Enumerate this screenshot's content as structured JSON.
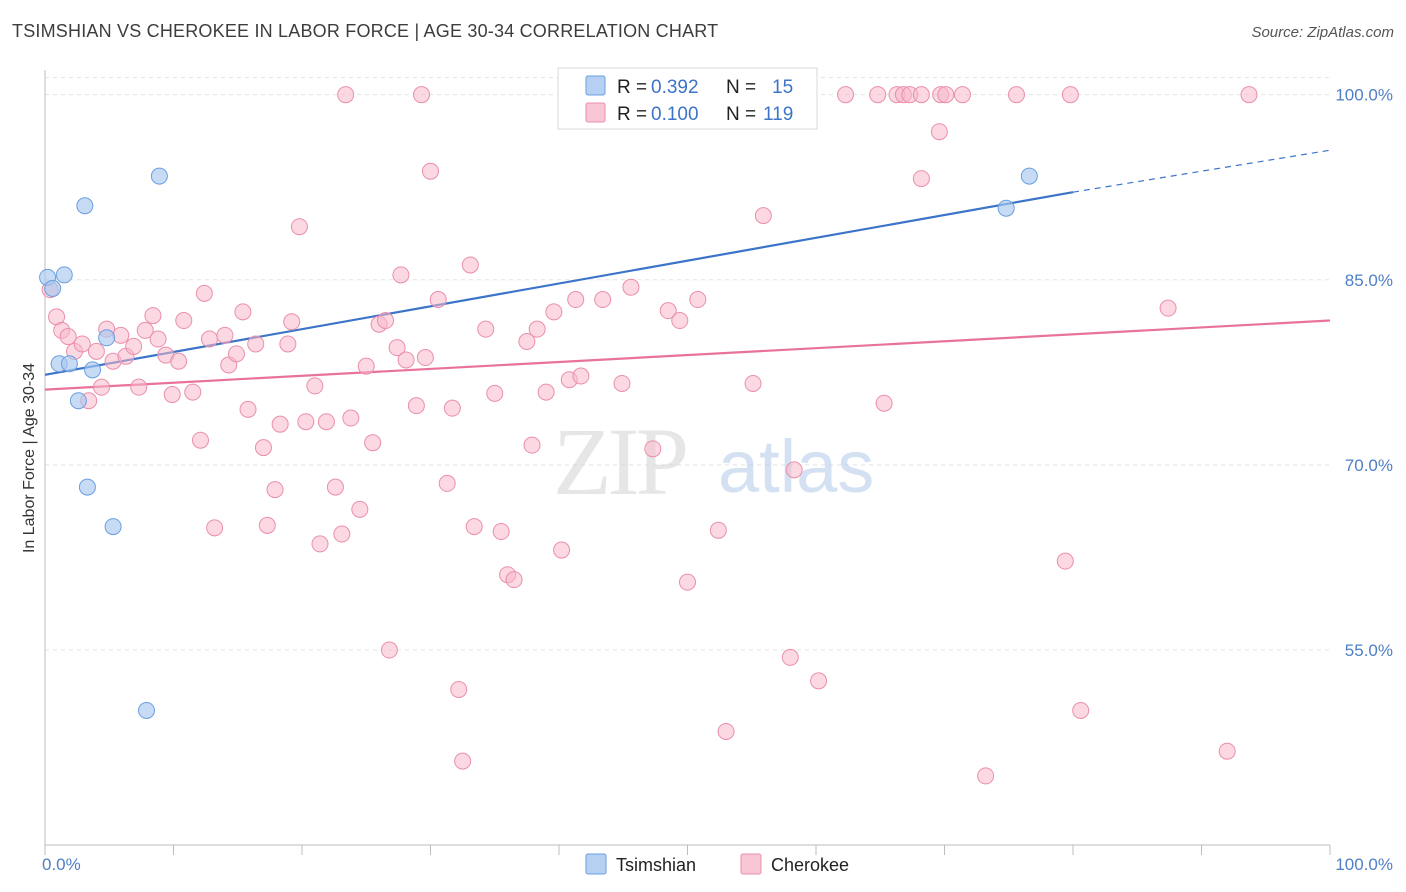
{
  "title": "TSIMSHIAN VS CHEROKEE IN LABOR FORCE | AGE 30-34 CORRELATION CHART",
  "source": "Source: ZipAtlas.com",
  "watermark": {
    "zip": "ZIP",
    "atlas": "atlas"
  },
  "legend": {
    "r_label": "R =",
    "n_label": "N =",
    "items": [
      {
        "name": "Tsimshian",
        "r": "0.392",
        "n": "15",
        "fill": "#a9c8f0",
        "stroke": "#6a9fe0"
      },
      {
        "name": "Cherokee",
        "r": "0.100",
        "n": "119",
        "fill": "#f7b8cb",
        "stroke": "#ea8fab"
      }
    ]
  },
  "chart_data": {
    "type": "scatter",
    "title": "TSIMSHIAN VS CHEROKEE IN LABOR FORCE | AGE 30-34 CORRELATION CHART",
    "xlabel": "",
    "ylabel": "In Labor Force | Age 30-34",
    "xlim": [
      0,
      100
    ],
    "ylim": [
      39.2,
      102
    ],
    "x_tick_labels": [
      "0.0%",
      "100.0%"
    ],
    "y_ticks": [
      55,
      70,
      85,
      100
    ],
    "y_tick_labels": [
      "55.0%",
      "70.0%",
      "85.0%",
      "100.0%"
    ],
    "grid": true,
    "series": [
      {
        "name": "Tsimshian",
        "color": "#6a9fe0",
        "fill": "#a9c8f0",
        "points": [
          [
            0.2,
            85.2
          ],
          [
            0.6,
            84.3
          ],
          [
            1.1,
            78.2
          ],
          [
            1.5,
            85.4
          ],
          [
            1.9,
            78.2
          ],
          [
            2.6,
            75.2
          ],
          [
            3.1,
            91.0
          ],
          [
            3.3,
            68.2
          ],
          [
            3.7,
            77.7
          ],
          [
            4.8,
            80.3
          ],
          [
            5.3,
            65.0
          ],
          [
            7.9,
            50.1
          ],
          [
            8.9,
            93.4
          ],
          [
            74.8,
            90.8
          ],
          [
            76.6,
            93.4
          ]
        ]
      },
      {
        "name": "Cherokee",
        "color": "#ea8fab",
        "fill": "#f7b8cb",
        "points": [
          [
            0.4,
            84.2
          ],
          [
            0.9,
            82.0
          ],
          [
            1.3,
            80.9
          ],
          [
            1.8,
            80.4
          ],
          [
            2.3,
            79.2
          ],
          [
            2.9,
            79.8
          ],
          [
            3.4,
            75.2
          ],
          [
            4.0,
            79.2
          ],
          [
            4.4,
            76.3
          ],
          [
            4.8,
            81.0
          ],
          [
            5.3,
            78.4
          ],
          [
            5.9,
            80.5
          ],
          [
            6.3,
            78.8
          ],
          [
            6.9,
            79.6
          ],
          [
            7.3,
            76.3
          ],
          [
            7.8,
            80.9
          ],
          [
            8.4,
            82.1
          ],
          [
            8.8,
            80.2
          ],
          [
            9.4,
            78.9
          ],
          [
            9.9,
            75.7
          ],
          [
            10.4,
            78.4
          ],
          [
            10.8,
            81.7
          ],
          [
            11.5,
            75.9
          ],
          [
            12.1,
            72.0
          ],
          [
            12.4,
            83.9
          ],
          [
            12.8,
            80.2
          ],
          [
            13.2,
            64.9
          ],
          [
            14.0,
            80.5
          ],
          [
            14.3,
            78.1
          ],
          [
            14.9,
            79.0
          ],
          [
            15.4,
            82.4
          ],
          [
            15.8,
            74.5
          ],
          [
            16.4,
            79.8
          ],
          [
            17.0,
            71.4
          ],
          [
            17.3,
            65.1
          ],
          [
            17.9,
            68.0
          ],
          [
            18.3,
            73.3
          ],
          [
            18.9,
            79.8
          ],
          [
            19.2,
            81.6
          ],
          [
            19.8,
            89.3
          ],
          [
            20.3,
            73.5
          ],
          [
            21.0,
            76.4
          ],
          [
            21.4,
            63.6
          ],
          [
            21.9,
            73.5
          ],
          [
            22.6,
            68.2
          ],
          [
            23.1,
            64.4
          ],
          [
            23.8,
            73.8
          ],
          [
            24.5,
            66.4
          ],
          [
            25.0,
            78.0
          ],
          [
            25.5,
            71.8
          ],
          [
            26.0,
            81.4
          ],
          [
            26.5,
            81.7
          ],
          [
            26.8,
            55.0
          ],
          [
            27.4,
            79.5
          ],
          [
            27.7,
            85.4
          ],
          [
            28.1,
            78.5
          ],
          [
            28.9,
            74.8
          ],
          [
            29.6,
            78.7
          ],
          [
            30.0,
            93.8
          ],
          [
            30.6,
            83.4
          ],
          [
            31.3,
            68.5
          ],
          [
            31.7,
            74.6
          ],
          [
            32.2,
            51.8
          ],
          [
            32.5,
            46.0
          ],
          [
            33.1,
            86.2
          ],
          [
            33.4,
            65.0
          ],
          [
            34.3,
            81.0
          ],
          [
            35.0,
            75.8
          ],
          [
            35.5,
            64.6
          ],
          [
            36.0,
            61.1
          ],
          [
            36.5,
            60.7
          ],
          [
            37.5,
            80.0
          ],
          [
            37.9,
            71.6
          ],
          [
            38.3,
            81.0
          ],
          [
            39.0,
            75.9
          ],
          [
            39.6,
            82.4
          ],
          [
            40.2,
            63.1
          ],
          [
            40.8,
            76.9
          ],
          [
            41.3,
            83.4
          ],
          [
            41.7,
            77.2
          ],
          [
            43.4,
            83.4
          ],
          [
            44.9,
            76.6
          ],
          [
            45.6,
            84.4
          ],
          [
            47.3,
            71.3
          ],
          [
            48.5,
            82.5
          ],
          [
            49.4,
            81.7
          ],
          [
            50.0,
            60.5
          ],
          [
            50.8,
            83.4
          ],
          [
            52.4,
            64.7
          ],
          [
            53.0,
            48.4
          ],
          [
            55.1,
            76.6
          ],
          [
            55.9,
            90.2
          ],
          [
            58.0,
            54.4
          ],
          [
            58.3,
            69.6
          ],
          [
            60.2,
            52.5
          ],
          [
            65.3,
            75.0
          ],
          [
            68.2,
            93.2
          ],
          [
            69.6,
            97.0
          ],
          [
            73.2,
            44.8
          ],
          [
            79.4,
            62.2
          ],
          [
            80.6,
            50.1
          ],
          [
            87.4,
            82.7
          ],
          [
            92.0,
            46.8
          ],
          [
            23.4,
            100
          ],
          [
            29.3,
            100
          ],
          [
            62.3,
            100
          ],
          [
            64.8,
            100
          ],
          [
            66.3,
            100
          ],
          [
            66.8,
            100
          ],
          [
            67.3,
            100
          ],
          [
            68.2,
            100
          ],
          [
            69.7,
            100
          ],
          [
            70.1,
            100
          ],
          [
            71.4,
            100
          ],
          [
            75.6,
            100
          ],
          [
            79.8,
            100
          ],
          [
            93.7,
            100
          ]
        ]
      }
    ],
    "trendlines": [
      {
        "series": "Tsimshian",
        "from": [
          0,
          77.3
        ],
        "to": [
          80,
          92.1
        ],
        "dashed_to": [
          100,
          95.5
        ],
        "color": "#3b74c8"
      },
      {
        "series": "Cherokee",
        "from": [
          0,
          76.1
        ],
        "to": [
          100,
          81.7
        ],
        "color": "#e8729a"
      }
    ]
  },
  "bottom_legend": [
    "Tsimshian",
    "Cherokee"
  ]
}
